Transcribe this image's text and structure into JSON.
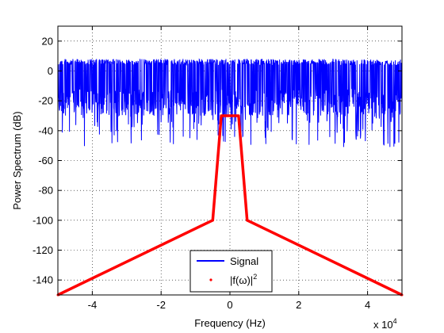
{
  "chart_data": {
    "type": "line",
    "xlabel": "Frequency (Hz)",
    "ylabel": "Power Spectrum (dB)",
    "x_exponent_base": "x 10",
    "x_exponent_power": "4",
    "xlim": [
      -50000,
      50000
    ],
    "ylim": [
      -150,
      30
    ],
    "x_ticks": [
      -40000,
      -20000,
      0,
      20000,
      40000
    ],
    "x_tick_labels": [
      "-4",
      "-2",
      "0",
      "2",
      "4"
    ],
    "y_ticks": [
      -140,
      -120,
      -100,
      -80,
      -60,
      -40,
      -20,
      0,
      20
    ],
    "y_tick_labels": [
      "-140",
      "-120",
      "-100",
      "-80",
      "-60",
      "-40",
      "-20",
      "0",
      "20"
    ],
    "grid": true,
    "legend_position": "bottom-center",
    "series": [
      {
        "name": "Signal",
        "color": "#0000ff",
        "style": "noise-band",
        "x_range": [
          -50000,
          50000
        ],
        "upper_envelope_db": 8,
        "lower_typical_db": -30,
        "lower_extreme_db": -51
      },
      {
        "name": "|f(ω)|",
        "name_superscript": "2",
        "color": "#ff0000",
        "x": [
          -50000,
          -5000,
          -2500,
          2500,
          5000,
          50000
        ],
        "y": [
          -150,
          -100,
          -30,
          -30,
          -100,
          -150
        ]
      }
    ]
  }
}
